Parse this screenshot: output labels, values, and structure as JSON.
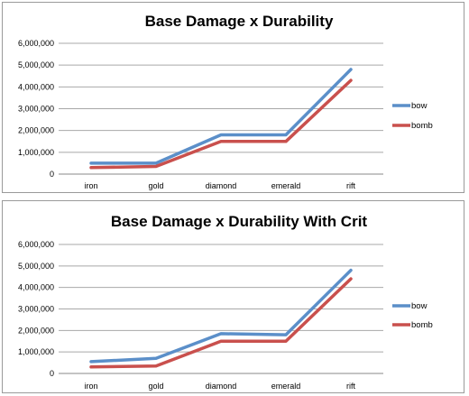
{
  "chart_data": [
    {
      "type": "line",
      "title": "Base Damage x Durability",
      "xlabel": "",
      "ylabel": "",
      "categories": [
        "iron",
        "gold",
        "diamond",
        "emerald",
        "rift"
      ],
      "ylim": [
        0,
        6000000
      ],
      "ytick_labels": [
        "0",
        "1,000,000",
        "2,000,000",
        "3,000,000",
        "4,000,000",
        "5,000,000",
        "6,000,000"
      ],
      "grid": true,
      "legend_position": "right",
      "series": [
        {
          "name": "bow",
          "color": "#5b8fc9",
          "values": [
            500000,
            500000,
            1800000,
            1800000,
            4800000
          ]
        },
        {
          "name": "bomb",
          "color": "#c9504d",
          "values": [
            300000,
            350000,
            1500000,
            1500000,
            4300000
          ]
        }
      ]
    },
    {
      "type": "line",
      "title": "Base Damage x Durability With Crit",
      "xlabel": "",
      "ylabel": "",
      "categories": [
        "iron",
        "gold",
        "diamond",
        "emerald",
        "rift"
      ],
      "ylim": [
        0,
        6000000
      ],
      "ytick_labels": [
        "0",
        "1,000,000",
        "2,000,000",
        "3,000,000",
        "4,000,000",
        "5,000,000",
        "6,000,000"
      ],
      "grid": true,
      "legend_position": "right",
      "series": [
        {
          "name": "bow",
          "color": "#5b8fc9",
          "values": [
            550000,
            700000,
            1850000,
            1800000,
            4800000
          ]
        },
        {
          "name": "bomb",
          "color": "#c9504d",
          "values": [
            300000,
            350000,
            1500000,
            1500000,
            4400000
          ]
        }
      ]
    }
  ]
}
